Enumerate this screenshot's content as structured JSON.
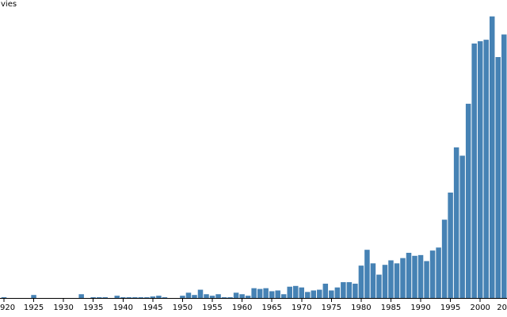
{
  "chart_data": {
    "type": "bar",
    "ylabel": "vies",
    "bar_color": "#4682b4",
    "grid": false,
    "xlim": [
      1920,
      2005
    ],
    "ylim": [
      0,
      380
    ],
    "x": [
      1920,
      1921,
      1922,
      1923,
      1924,
      1925,
      1926,
      1927,
      1928,
      1929,
      1930,
      1931,
      1932,
      1933,
      1934,
      1935,
      1936,
      1937,
      1938,
      1939,
      1940,
      1941,
      1942,
      1943,
      1944,
      1945,
      1946,
      1947,
      1948,
      1949,
      1950,
      1951,
      1952,
      1953,
      1954,
      1955,
      1956,
      1957,
      1958,
      1959,
      1960,
      1961,
      1962,
      1963,
      1964,
      1965,
      1966,
      1967,
      1968,
      1969,
      1970,
      1971,
      1972,
      1973,
      1974,
      1975,
      1976,
      1977,
      1978,
      1979,
      1980,
      1981,
      1982,
      1983,
      1984,
      1985,
      1986,
      1987,
      1988,
      1989,
      1990,
      1991,
      1992,
      1993,
      1994,
      1995,
      1996,
      1997,
      1998,
      1999,
      2000,
      2001,
      2002,
      2003,
      2004,
      2005
    ],
    "values": [
      1,
      0,
      0,
      0,
      0,
      4,
      0,
      0,
      0,
      0,
      0,
      0,
      0,
      5,
      0,
      1,
      1,
      1,
      0,
      3,
      1,
      1,
      1,
      1,
      1,
      2,
      3,
      1,
      0,
      0,
      3,
      7,
      4,
      11,
      5,
      3,
      5,
      1,
      1,
      7,
      5,
      3,
      13,
      12,
      13,
      9,
      10,
      5,
      15,
      16,
      14,
      8,
      10,
      11,
      19,
      10,
      14,
      21,
      21,
      19,
      43,
      64,
      46,
      31,
      44,
      50,
      46,
      53,
      60,
      56,
      57,
      49,
      63,
      67,
      104,
      140,
      200,
      189,
      258,
      338,
      341,
      343,
      374,
      320,
      350,
      375
    ],
    "tick_years": [
      1920,
      1925,
      1930,
      1935,
      1940,
      1945,
      1950,
      1955,
      1960,
      1965,
      1970,
      1975,
      1980,
      1985,
      1990,
      1995,
      2000,
      2005
    ],
    "tick_labels": [
      "920",
      "1925",
      "1930",
      "1935",
      "1940",
      "1945",
      "1950",
      "1955",
      "1960",
      "1965",
      "1970",
      "1975",
      "1980",
      "1985",
      "1990",
      "1995",
      "2000",
      "20"
    ]
  }
}
